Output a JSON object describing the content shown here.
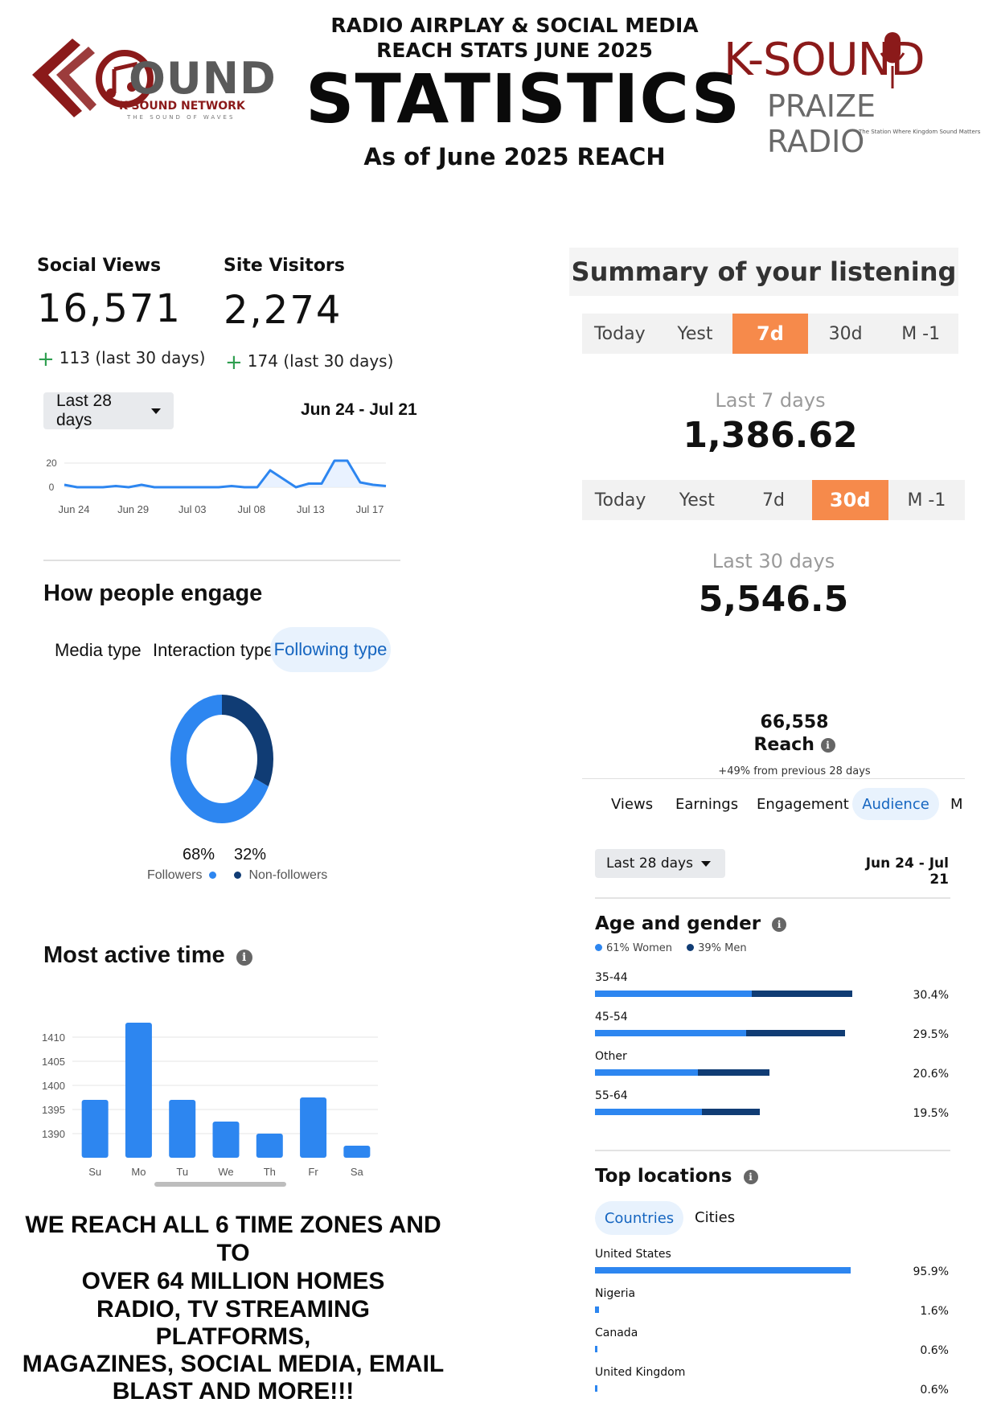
{
  "header": {
    "title_line1": "RADIO AIRPLAY & SOCIAL MEDIA",
    "title_line2": "REACH STATS JUNE 2025",
    "big_title": "STATISTICS",
    "subtitle": "As of June 2025 REACH"
  },
  "logo_left": {
    "wordmark": "OUND",
    "network": "K-SOUND NETWORK",
    "tagline": "THE SOUND OF WAVES"
  },
  "logo_right": {
    "line1": "K-SOUND",
    "line2": "PRAIZE RADIO",
    "tagline": "The Station Where Kingdom Sound Matters"
  },
  "colors": {
    "accent_blue": "#2d86f0",
    "dark_blue": "#103c74",
    "orange": "#f68a4b",
    "green": "#2e9e4f",
    "maroon": "#8b1a1a"
  },
  "social": {
    "views_label": "Social Views",
    "views_value": "16,571",
    "views_delta": "113 (last 30 days)",
    "visitors_label": "Site Visitors",
    "visitors_value": "2,274",
    "visitors_delta": "174 (last 30 days)"
  },
  "range": {
    "label": "Last 28 days",
    "dates": "Jun 24 - Jul 21"
  },
  "line_chart": {
    "chart_data": {
      "type": "line",
      "ylim": [
        0,
        20
      ],
      "yticks": [
        "20",
        "0"
      ],
      "xticks": [
        "Jun 24",
        "Jun 29",
        "Jul 03",
        "Jul 08",
        "Jul 13",
        "Jul 17"
      ],
      "values": [
        2,
        0,
        0,
        0,
        1,
        0,
        2,
        0,
        0,
        0,
        0,
        0,
        0,
        1,
        0,
        0,
        14,
        7,
        0,
        3,
        3,
        22,
        22,
        4,
        2,
        1
      ]
    }
  },
  "engage": {
    "title": "How people engage",
    "tabs": [
      "Media type",
      "Interaction type",
      "Following type"
    ],
    "active_tab": "Following type",
    "followers_pct": "68%",
    "followers_label": "Followers",
    "nonfollowers_pct": "32%",
    "nonfollowers_label": "Non-followers",
    "chart_data": {
      "type": "pie",
      "labels": [
        "Followers",
        "Non-followers"
      ],
      "values": [
        68,
        32
      ]
    }
  },
  "active_time": {
    "title": "Most active time",
    "chart_data": {
      "type": "bar",
      "categories": [
        "Su",
        "Mo",
        "Tu",
        "We",
        "Th",
        "Fr",
        "Sa"
      ],
      "values": [
        1397,
        1413,
        1397,
        1392.5,
        1390,
        1397.5,
        1387.5
      ],
      "yticks": [
        "1410",
        "1405",
        "1400",
        "1395",
        "1390"
      ],
      "ylim": [
        1385,
        1415
      ]
    }
  },
  "bottom": {
    "line1": "WE REACH ALL 6 TIME ZONES AND TO",
    "line2": "OVER 64 MILLION HOMES",
    "line3": "RADIO, TV STREAMING PLATFORMS,",
    "line4": "MAGAZINES, SOCIAL MEDIA, EMAIL",
    "line5": "BLAST AND MORE!!!"
  },
  "listening": {
    "title": "Summary of your listening",
    "tabs": [
      "Today",
      "Yest",
      "7d",
      "30d",
      "M -1"
    ],
    "week_label": "Last 7 days",
    "week_value": "1,386.62",
    "month_label": "Last 30 days",
    "month_value": "5,546.5"
  },
  "reach": {
    "value": "66,558",
    "label": "Reach",
    "change": "+49% from previous 28 days",
    "tabs": [
      "Views",
      "Earnings",
      "Engagement",
      "Audience",
      "M"
    ],
    "range_label": "Last 28 days",
    "range_dates": "Jun 24 - Jul 21"
  },
  "age_gender": {
    "title": "Age and gender",
    "women": "61% Women",
    "men": "39% Men",
    "rows": [
      {
        "label": "35-44",
        "pct": "30.4%",
        "women": 18.5,
        "men": 11.9
      },
      {
        "label": "45-54",
        "pct": "29.5%",
        "women": 17.9,
        "men": 11.6
      },
      {
        "label": "Other",
        "pct": "20.6%",
        "women": 12.2,
        "men": 8.4
      },
      {
        "label": "55-64",
        "pct": "19.5%",
        "women": 12.6,
        "men": 6.9
      }
    ]
  },
  "locations": {
    "title": "Top locations",
    "tabs": [
      "Countries",
      "Cities"
    ],
    "rows": [
      {
        "label": "United States",
        "pct": "95.9%",
        "value": 95.9
      },
      {
        "label": "Nigeria",
        "pct": "1.6%",
        "value": 1.6
      },
      {
        "label": "Canada",
        "pct": "0.6%",
        "value": 0.6
      },
      {
        "label": "United Kingdom",
        "pct": "0.6%",
        "value": 0.6
      }
    ]
  }
}
